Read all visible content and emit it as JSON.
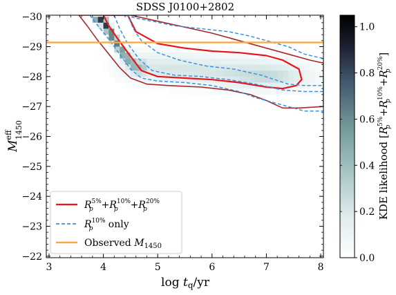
{
  "chart_data": {
    "type": "heatmap",
    "title": "SDSS J0100+2802",
    "xlabel_parts": [
      "log ",
      "t",
      "q",
      "/yr"
    ],
    "ylabel_parts": [
      "M",
      "eff",
      "1450"
    ],
    "xlim": [
      2.95,
      8.05
    ],
    "ylim": [
      -21.95,
      -30.05
    ],
    "xticks": [
      3,
      4,
      5,
      6,
      7,
      8
    ],
    "xtick_labels": [
      "3",
      "4",
      "5",
      "6",
      "7",
      "8"
    ],
    "yticks": [
      -30,
      -29,
      -28,
      -27,
      -26,
      -25,
      -24,
      -23,
      -22
    ],
    "ytick_labels": [
      "−30",
      "−29",
      "−28",
      "−27",
      "−26",
      "−25",
      "−24",
      "−23",
      "−22"
    ],
    "observed_M1450": -29.14,
    "colorbar": {
      "range": [
        0.0,
        1.05
      ],
      "ticks": [
        0.0,
        0.2,
        0.4,
        0.6,
        0.8,
        1.0
      ],
      "tick_labels": [
        "0.0",
        "0.2",
        "0.4",
        "0.6",
        "0.8",
        "1.0"
      ],
      "label_parts": [
        "KDE likelihood [",
        "R",
        "p",
        "5%",
        "+",
        "R",
        "p",
        "10%",
        "+",
        "R",
        "p",
        "20%",
        "]"
      ],
      "colors": [
        "#ffffff",
        "#dfeced",
        "#a7c6c6",
        "#6f9595",
        "#44596f",
        "#1b1e2e",
        "#000000"
      ]
    },
    "legend": {
      "placement": "lower-left",
      "entries": [
        {
          "name_parts": [
            "R",
            "p",
            "5%",
            "+",
            "R",
            "p",
            "10%",
            "+",
            "R",
            "p",
            "20%"
          ],
          "color": "#e8141a",
          "style": "solid"
        },
        {
          "name_parts": [
            "R",
            "p",
            "10%",
            " only"
          ],
          "color": "#3b8ede",
          "style": "dashed"
        },
        {
          "name_parts": [
            "Observed ",
            "M",
            "1450"
          ],
          "color": "#f5a94a",
          "style": "solid"
        }
      ]
    },
    "ridge": [
      [
        3.9,
        -30.1
      ],
      [
        4.0,
        -29.85
      ],
      [
        4.1,
        -29.55
      ],
      [
        4.2,
        -29.25
      ],
      [
        4.3,
        -28.95
      ],
      [
        4.4,
        -28.7
      ],
      [
        4.5,
        -28.5
      ],
      [
        4.6,
        -28.3
      ]
    ],
    "contours": {
      "combined_outer": {
        "color": "#a82626",
        "points": [
          [
            3.55,
            -30.05
          ],
          [
            3.7,
            -29.7
          ],
          [
            3.9,
            -29.2
          ],
          [
            4.1,
            -28.75
          ],
          [
            4.3,
            -28.3
          ],
          [
            4.5,
            -27.95
          ],
          [
            4.8,
            -27.75
          ],
          [
            5.2,
            -27.7
          ],
          [
            5.8,
            -27.65
          ],
          [
            6.3,
            -27.55
          ],
          [
            6.7,
            -27.4
          ],
          [
            7.0,
            -27.2
          ],
          [
            7.3,
            -26.95
          ],
          [
            7.6,
            -26.95
          ],
          [
            8.05,
            -27.0
          ],
          [
            8.05,
            -28.45
          ],
          [
            7.8,
            -28.55
          ],
          [
            7.4,
            -28.75
          ],
          [
            7.0,
            -28.95
          ],
          [
            6.5,
            -29.2
          ],
          [
            6.0,
            -29.45
          ],
          [
            5.5,
            -29.65
          ],
          [
            5.0,
            -29.85
          ],
          [
            4.5,
            -30.05
          ]
        ]
      },
      "combined_inner": {
        "color": "#e8141a",
        "points": [
          [
            4.0,
            -30.05
          ],
          [
            4.1,
            -29.7
          ],
          [
            4.25,
            -29.3
          ],
          [
            4.45,
            -28.8
          ],
          [
            4.7,
            -28.2
          ],
          [
            5.0,
            -28.0
          ],
          [
            5.5,
            -27.95
          ],
          [
            6.0,
            -27.9
          ],
          [
            6.5,
            -27.8
          ],
          [
            7.0,
            -27.65
          ],
          [
            7.3,
            -27.6
          ],
          [
            7.55,
            -27.7
          ],
          [
            7.65,
            -27.9
          ],
          [
            7.6,
            -28.25
          ],
          [
            7.3,
            -28.55
          ],
          [
            7.0,
            -28.7
          ],
          [
            6.5,
            -28.8
          ],
          [
            6.0,
            -28.85
          ],
          [
            5.5,
            -28.95
          ],
          [
            5.0,
            -29.1
          ],
          [
            4.6,
            -29.5
          ],
          [
            4.45,
            -30.05
          ]
        ]
      },
      "rp10_outer": {
        "color": "#3b8ede",
        "points": [
          [
            3.75,
            -30.05
          ],
          [
            3.9,
            -29.7
          ],
          [
            4.1,
            -29.25
          ],
          [
            4.3,
            -28.75
          ],
          [
            4.5,
            -28.25
          ],
          [
            4.7,
            -27.95
          ],
          [
            5.0,
            -27.85
          ],
          [
            5.5,
            -27.8
          ],
          [
            6.0,
            -27.7
          ],
          [
            6.5,
            -27.5
          ],
          [
            6.8,
            -27.3
          ],
          [
            7.1,
            -27.15
          ],
          [
            7.4,
            -27.0
          ],
          [
            7.7,
            -26.85
          ],
          [
            8.05,
            -26.85
          ],
          [
            8.05,
            -28.6
          ],
          [
            7.7,
            -28.75
          ],
          [
            7.4,
            -29.0
          ],
          [
            7.0,
            -29.2
          ],
          [
            6.7,
            -29.35
          ],
          [
            6.3,
            -29.5
          ],
          [
            5.8,
            -29.6
          ],
          [
            5.3,
            -29.7
          ],
          [
            4.9,
            -29.85
          ],
          [
            4.6,
            -29.95
          ],
          [
            4.4,
            -30.05
          ]
        ]
      },
      "rp10_inner": {
        "color": "#3b8ede",
        "points": [
          [
            4.2,
            -30.05
          ],
          [
            4.3,
            -29.6
          ],
          [
            4.45,
            -29.1
          ],
          [
            4.65,
            -28.6
          ],
          [
            4.9,
            -28.2
          ],
          [
            5.3,
            -28.05
          ],
          [
            5.8,
            -28.0
          ],
          [
            6.3,
            -27.9
          ],
          [
            6.8,
            -27.75
          ],
          [
            7.3,
            -27.55
          ],
          [
            7.7,
            -27.5
          ],
          [
            8.05,
            -27.5
          ],
          [
            8.05,
            -27.7
          ],
          [
            7.7,
            -27.7
          ],
          [
            7.4,
            -27.75
          ],
          [
            6.9,
            -28.05
          ],
          [
            6.4,
            -28.25
          ],
          [
            5.9,
            -28.35
          ],
          [
            5.4,
            -28.55
          ],
          [
            5.0,
            -28.8
          ],
          [
            4.7,
            -29.2
          ],
          [
            4.55,
            -29.6
          ],
          [
            4.45,
            -30.05
          ]
        ]
      }
    }
  }
}
